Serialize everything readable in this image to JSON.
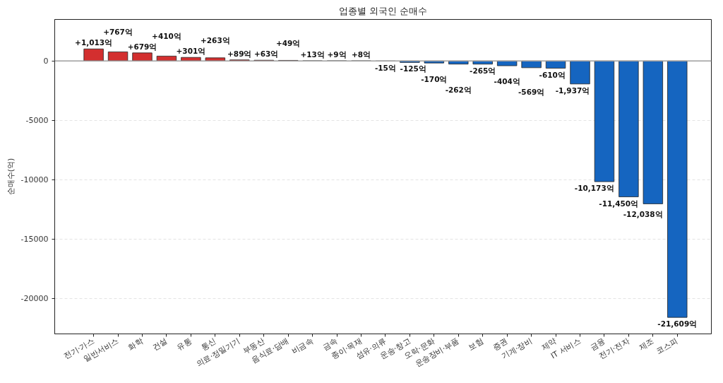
{
  "chart_data": {
    "type": "bar",
    "title": "업종별 외국인 순매수",
    "ylabel": "순매수(억)",
    "categories": [
      "전기·가스",
      "일반서비스",
      "화학",
      "건설",
      "유통",
      "통신",
      "의료·정밀기기",
      "부동산",
      "음식료·담배",
      "비금속",
      "금속",
      "종이·목재",
      "섬유·의류",
      "운송·창고",
      "오락·문화",
      "운송장비·부품",
      "보험",
      "증권",
      "기계·장비",
      "제약",
      "IT 서비스",
      "금융",
      "전기·전자",
      "제조",
      "코스피"
    ],
    "values": [
      1013,
      767,
      679,
      410,
      301,
      263,
      89,
      63,
      49,
      13,
      9,
      8,
      -15,
      -125,
      -170,
      -262,
      -265,
      -404,
      -569,
      -610,
      -1937,
      -10173,
      -11450,
      -12038,
      -21609
    ],
    "colors": [
      "#d32f2f",
      "#d32f2f",
      "#d32f2f",
      "#d32f2f",
      "#d32f2f",
      "#d32f2f",
      "#d32f2f",
      "#d32f2f",
      "#d32f2f",
      "#d32f2f",
      "#d32f2f",
      "#d32f2f",
      "#1565c0",
      "#1565c0",
      "#1565c0",
      "#1565c0",
      "#1565c0",
      "#1565c0",
      "#1565c0",
      "#1565c0",
      "#1565c0",
      "#1565c0",
      "#1565c0",
      "#1565c0",
      "#1565c0"
    ],
    "value_labels": [
      "+1,013억",
      "+767억",
      "+679억",
      "+410억",
      "+301억",
      "+263억",
      "+89억",
      "+63억",
      "+49억",
      "+13억",
      "+9억",
      "+8억",
      "-15억",
      "-125억",
      "-170억",
      "-262억",
      "-265억",
      "-404억",
      "-569억",
      "-610억",
      "-1,937억",
      "-10,173억",
      "-11,450억",
      "-12,038억",
      "-21,609억"
    ],
    "ylim": [
      -23000,
      3500
    ],
    "yticks": [
      0,
      -5000,
      -10000,
      -15000,
      -20000
    ],
    "grid": "y",
    "ref_lines": [
      {
        "axis": "y",
        "value": 0,
        "color": "#9e9e9e"
      }
    ]
  }
}
